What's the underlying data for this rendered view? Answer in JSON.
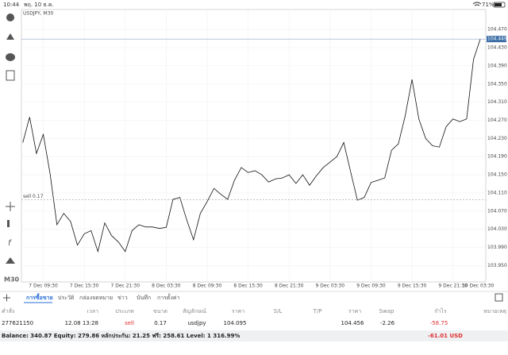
{
  "status_bar": {
    "time": "10:44",
    "date": "พฤ. 10 ธ.ค.",
    "battery": "71%"
  },
  "toolbar": {
    "timeframe": "M30"
  },
  "chart": {
    "type": "line",
    "title": "USDJPY, M30",
    "color": "#111111",
    "values": [
      104.221,
      104.277,
      104.197,
      104.239,
      104.152,
      104.04,
      104.065,
      104.047,
      103.995,
      104.02,
      104.027,
      103.981,
      104.044,
      104.016,
      104.002,
      103.981,
      104.027,
      104.04,
      104.035,
      104.035,
      104.032,
      104.034,
      104.096,
      104.1,
      104.051,
      104.007,
      104.065,
      104.091,
      104.12,
      104.107,
      104.096,
      104.138,
      104.166,
      104.155,
      104.159,
      104.15,
      104.134,
      104.141,
      104.143,
      104.15,
      104.131,
      104.15,
      104.127,
      104.148,
      104.166,
      104.178,
      104.19,
      104.221,
      104.157,
      104.094,
      104.1,
      104.133,
      104.138,
      104.143,
      104.204,
      104.218,
      104.28,
      104.36,
      104.273,
      104.23,
      104.214,
      104.211,
      104.256,
      104.273,
      104.267,
      104.273,
      104.404,
      104.449
    ],
    "xlim": [
      -0.2,
      67.8
    ],
    "xticks": [
      {
        "value": 3,
        "label": "7 Dec 09:30"
      },
      {
        "value": 9,
        "label": "7 Dec 15:30"
      },
      {
        "value": 15,
        "label": "7 Dec 21:30"
      },
      {
        "value": 21,
        "label": "8 Dec 03:30"
      },
      {
        "value": 27,
        "label": "8 Dec 09:30"
      },
      {
        "value": 33,
        "label": "8 Dec 15:30"
      },
      {
        "value": 39,
        "label": "8 Dec 21:30"
      },
      {
        "value": 45,
        "label": "9 Dec 03:30"
      },
      {
        "value": 51,
        "label": "9 Dec 09:30"
      },
      {
        "value": 57,
        "label": "9 Dec 15:30"
      },
      {
        "value": 63,
        "label": "9 Dec 21:30"
      },
      {
        "value": 69,
        "label": "10 Dec 03:30"
      }
    ],
    "ylim": [
      103.914,
      104.514
    ],
    "yticks": [
      {
        "value": 103.95,
        "label": "103.950"
      },
      {
        "value": 103.99,
        "label": "103.990"
      },
      {
        "value": 104.03,
        "label": "104.030"
      },
      {
        "value": 104.07,
        "label": "104.070"
      },
      {
        "value": 104.11,
        "label": "104.110"
      },
      {
        "value": 104.15,
        "label": "104.150"
      },
      {
        "value": 104.19,
        "label": "104.190"
      },
      {
        "value": 104.23,
        "label": "104.230"
      },
      {
        "value": 104.27,
        "label": "104.270"
      },
      {
        "value": 104.31,
        "label": "104.310"
      },
      {
        "value": 104.35,
        "label": "104.350"
      },
      {
        "value": 104.39,
        "label": "104.390"
      },
      {
        "value": 104.43,
        "label": "104.430"
      },
      {
        "value": 104.47,
        "label": "104.470"
      }
    ],
    "current_price": 104.449,
    "order_line": {
      "label": "sell 0.17",
      "value": 104.095
    }
  },
  "tabs": [
    "การซื้อขาย",
    "ประวัติ",
    "กล่องจดหมาย",
    "ข่าว",
    "บันทึก",
    "การตั้งค่า"
  ],
  "table": {
    "headers": [
      "คำสั่ง",
      "เวลา",
      "ประเภท",
      "ขนาด",
      "สัญลักษณ์",
      "ราคา",
      "S/L",
      "T/P",
      "ราคา",
      "Swap",
      "กำไร",
      "หมายเหตุ"
    ],
    "rows": [
      {
        "ticket": "277621150",
        "time": "12.08 13:28",
        "type": "sell",
        "volume": "0.17",
        "symbol": "usdjpy",
        "price": "104.095",
        "current_price": "104.456",
        "swap": "-2.26",
        "profit": "-58.75"
      }
    ]
  },
  "footer": {
    "summary": "Balance: 340.87 Equity: 279.86 หลักประกัน: 21.25 ฟรี: 258.61 Level: 1 316.99%",
    "total": "-61.01 USD"
  }
}
